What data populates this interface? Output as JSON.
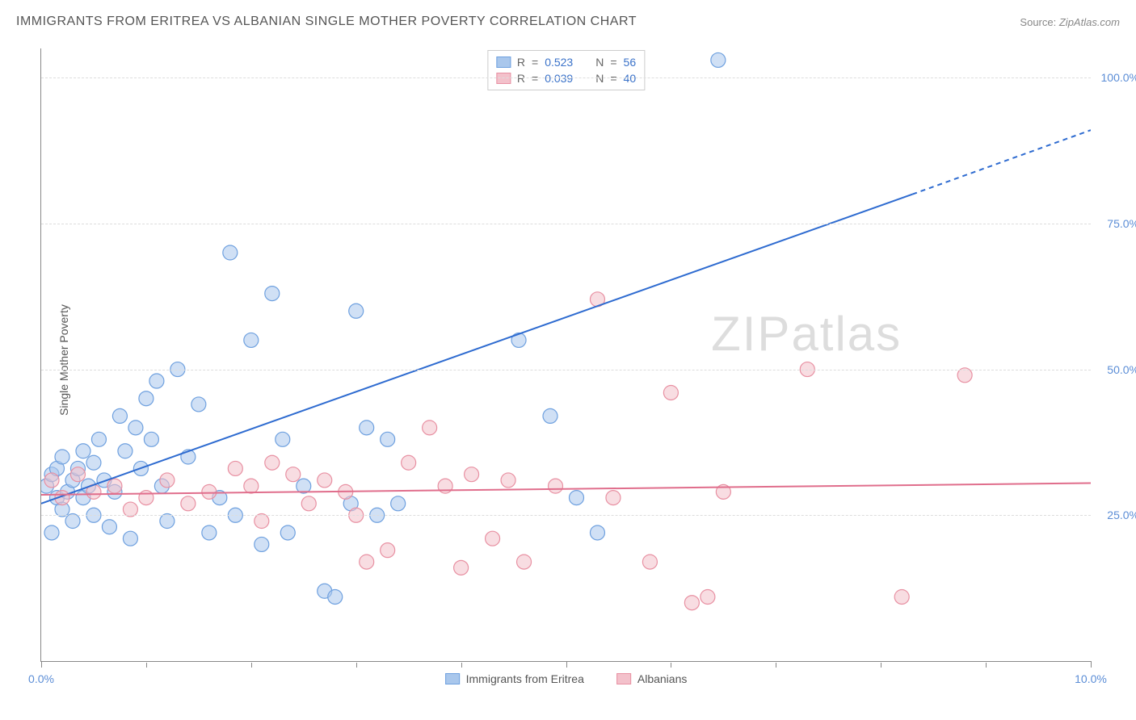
{
  "title": "IMMIGRANTS FROM ERITREA VS ALBANIAN SINGLE MOTHER POVERTY CORRELATION CHART",
  "source_label": "Source:",
  "source_value": "ZipAtlas.com",
  "watermark": "ZIPatlas",
  "y_axis_label": "Single Mother Poverty",
  "chart": {
    "type": "scatter",
    "xlim": [
      0,
      10
    ],
    "ylim": [
      0,
      105
    ],
    "x_ticks": [
      0,
      5,
      10
    ],
    "x_tick_labels": [
      "0.0%",
      "",
      "10.0%"
    ],
    "y_gridlines": [
      25,
      50,
      75,
      100
    ],
    "y_tick_labels": [
      "25.0%",
      "50.0%",
      "75.0%",
      "100.0%"
    ],
    "grid_color": "#dddddd",
    "axis_color": "#888888",
    "background_color": "#ffffff",
    "tick_color": "#5b8dd6",
    "series": [
      {
        "name": "Immigrants from Eritrea",
        "fill": "#a9c7ec",
        "stroke": "#6ea0df",
        "marker_radius": 9,
        "fill_opacity": 0.55,
        "line_color": "#2e6bd0",
        "line_width": 2,
        "trend": {
          "x1": 0.0,
          "y1": 27,
          "x2": 8.3,
          "y2": 80,
          "dash_from_x": 8.3,
          "x3": 10.0,
          "y3": 91
        },
        "R": "0.523",
        "N": "56",
        "points": [
          [
            0.05,
            30
          ],
          [
            0.1,
            32
          ],
          [
            0.15,
            28
          ],
          [
            0.15,
            33
          ],
          [
            0.2,
            26
          ],
          [
            0.2,
            35
          ],
          [
            0.25,
            29
          ],
          [
            0.3,
            31
          ],
          [
            0.3,
            24
          ],
          [
            0.35,
            33
          ],
          [
            0.4,
            28
          ],
          [
            0.4,
            36
          ],
          [
            0.45,
            30
          ],
          [
            0.5,
            34
          ],
          [
            0.5,
            25
          ],
          [
            0.55,
            38
          ],
          [
            0.6,
            31
          ],
          [
            0.65,
            23
          ],
          [
            0.7,
            29
          ],
          [
            0.75,
            42
          ],
          [
            0.8,
            36
          ],
          [
            0.85,
            21
          ],
          [
            0.9,
            40
          ],
          [
            0.95,
            33
          ],
          [
            1.0,
            45
          ],
          [
            1.05,
            38
          ],
          [
            1.1,
            48
          ],
          [
            1.15,
            30
          ],
          [
            1.2,
            24
          ],
          [
            1.3,
            50
          ],
          [
            1.4,
            35
          ],
          [
            1.5,
            44
          ],
          [
            1.6,
            22
          ],
          [
            1.7,
            28
          ],
          [
            1.8,
            70
          ],
          [
            1.85,
            25
          ],
          [
            2.0,
            55
          ],
          [
            2.1,
            20
          ],
          [
            2.2,
            63
          ],
          [
            2.3,
            38
          ],
          [
            2.35,
            22
          ],
          [
            2.5,
            30
          ],
          [
            2.7,
            12
          ],
          [
            2.8,
            11
          ],
          [
            2.95,
            27
          ],
          [
            3.0,
            60
          ],
          [
            3.1,
            40
          ],
          [
            3.2,
            25
          ],
          [
            3.3,
            38
          ],
          [
            3.4,
            27
          ],
          [
            4.55,
            55
          ],
          [
            4.85,
            42
          ],
          [
            5.1,
            28
          ],
          [
            5.3,
            22
          ],
          [
            6.45,
            103
          ],
          [
            0.1,
            22
          ]
        ]
      },
      {
        "name": "Albanians",
        "fill": "#f3c1cb",
        "stroke": "#e890a2",
        "marker_radius": 9,
        "fill_opacity": 0.55,
        "line_color": "#e06e8c",
        "line_width": 2,
        "trend": {
          "x1": 0.0,
          "y1": 28.5,
          "x2": 10.0,
          "y2": 30.5
        },
        "R": "0.039",
        "N": "40",
        "points": [
          [
            0.1,
            31
          ],
          [
            0.2,
            28
          ],
          [
            0.35,
            32
          ],
          [
            0.5,
            29
          ],
          [
            0.7,
            30
          ],
          [
            0.85,
            26
          ],
          [
            1.0,
            28
          ],
          [
            1.2,
            31
          ],
          [
            1.4,
            27
          ],
          [
            1.6,
            29
          ],
          [
            1.85,
            33
          ],
          [
            2.0,
            30
          ],
          [
            2.2,
            34
          ],
          [
            2.4,
            32
          ],
          [
            2.55,
            27
          ],
          [
            2.7,
            31
          ],
          [
            2.9,
            29
          ],
          [
            3.1,
            17
          ],
          [
            3.3,
            19
          ],
          [
            3.5,
            34
          ],
          [
            3.7,
            40
          ],
          [
            3.85,
            30
          ],
          [
            4.0,
            16
          ],
          [
            4.1,
            32
          ],
          [
            4.3,
            21
          ],
          [
            4.45,
            31
          ],
          [
            4.6,
            17
          ],
          [
            4.9,
            30
          ],
          [
            5.3,
            62
          ],
          [
            5.45,
            28
          ],
          [
            5.8,
            17
          ],
          [
            6.0,
            46
          ],
          [
            6.2,
            10
          ],
          [
            6.35,
            11
          ],
          [
            6.5,
            29
          ],
          [
            7.3,
            50
          ],
          [
            8.2,
            11
          ],
          [
            8.8,
            49
          ],
          [
            3.0,
            25
          ],
          [
            2.1,
            24
          ]
        ]
      }
    ]
  },
  "stats_box": {
    "R_label": "R",
    "N_label": "N",
    "eq": "="
  },
  "legend": {
    "series1": "Immigrants from Eritrea",
    "series2": "Albanians"
  }
}
